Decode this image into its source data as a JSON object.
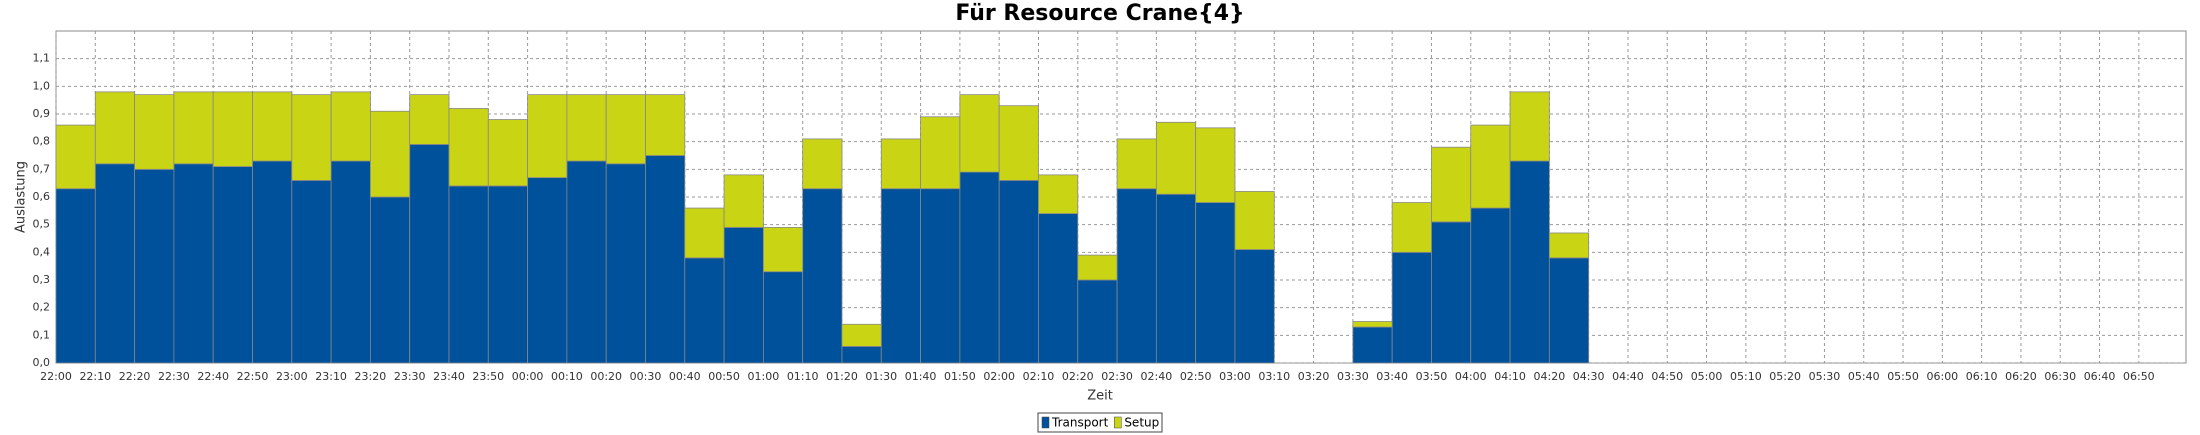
{
  "chart_data": {
    "type": "bar",
    "stacked": true,
    "title": "Für Resource Crane{4}",
    "x_label": "Zeit",
    "y_label": "Auslastung",
    "categories": [
      "22:00",
      "22:10",
      "22:20",
      "22:30",
      "22:40",
      "22:50",
      "23:00",
      "23:10",
      "23:20",
      "23:30",
      "23:40",
      "23:50",
      "00:00",
      "00:10",
      "00:20",
      "00:30",
      "00:40",
      "00:50",
      "01:00",
      "01:10",
      "01:20",
      "01:30",
      "01:40",
      "01:50",
      "02:00",
      "02:10",
      "02:20",
      "02:30",
      "02:40",
      "02:50",
      "03:00",
      "03:10",
      "03:20",
      "03:30",
      "03:40",
      "03:50",
      "04:00",
      "04:10",
      "04:20",
      "04:30",
      "04:40",
      "04:50",
      "05:00",
      "05:10",
      "05:20",
      "05:30",
      "05:40",
      "05:50",
      "06:00",
      "06:10",
      "06:20",
      "06:30",
      "06:40",
      "06:50"
    ],
    "series": [
      {
        "name": "Transport",
        "color": "#00519b",
        "values": [
          0.63,
          0.72,
          0.7,
          0.72,
          0.71,
          0.73,
          0.66,
          0.73,
          0.6,
          0.79,
          0.64,
          0.64,
          0.67,
          0.73,
          0.72,
          0.75,
          0.38,
          0.49,
          0.33,
          0.63,
          0.06,
          0.63,
          0.63,
          0.69,
          0.66,
          0.54,
          0.3,
          0.63,
          0.61,
          0.58,
          0.41,
          null,
          null,
          0.13,
          0.4,
          0.51,
          0.56,
          0.73,
          0.38,
          null,
          null,
          null,
          null,
          null,
          null,
          null,
          null,
          null,
          null,
          null,
          null,
          null,
          null,
          null
        ]
      },
      {
        "name": "Setup",
        "color": "#c8d414",
        "values": [
          0.23,
          0.26,
          0.27,
          0.26,
          0.27,
          0.25,
          0.31,
          0.25,
          0.31,
          0.18,
          0.28,
          0.24,
          0.3,
          0.24,
          0.25,
          0.22,
          0.18,
          0.19,
          0.16,
          0.18,
          0.08,
          0.18,
          0.26,
          0.28,
          0.27,
          0.14,
          0.09,
          0.18,
          0.26,
          0.27,
          0.21,
          null,
          null,
          0.02,
          0.18,
          0.27,
          0.3,
          0.25,
          0.09,
          null,
          null,
          null,
          null,
          null,
          null,
          null,
          null,
          null,
          null,
          null,
          null,
          null,
          null,
          null
        ]
      }
    ],
    "ylim": [
      0,
      1.2
    ],
    "yticks": [
      {
        "value": 0,
        "label": "0,0"
      },
      {
        "value": 0.1,
        "label": "0,1"
      },
      {
        "value": 0.2,
        "label": "0,2"
      },
      {
        "value": 0.3,
        "label": "0,3"
      },
      {
        "value": 0.4,
        "label": "0,4"
      },
      {
        "value": 0.5,
        "label": "0,5"
      },
      {
        "value": 0.6,
        "label": "0,6"
      },
      {
        "value": 0.7,
        "label": "0,7"
      },
      {
        "value": 0.8,
        "label": "0,8"
      },
      {
        "value": 0.9,
        "label": "0,9"
      },
      {
        "value": 1.0,
        "label": "1,0"
      },
      {
        "value": 1.1,
        "label": "1,1"
      }
    ],
    "grid": true,
    "legend": "bottom"
  }
}
